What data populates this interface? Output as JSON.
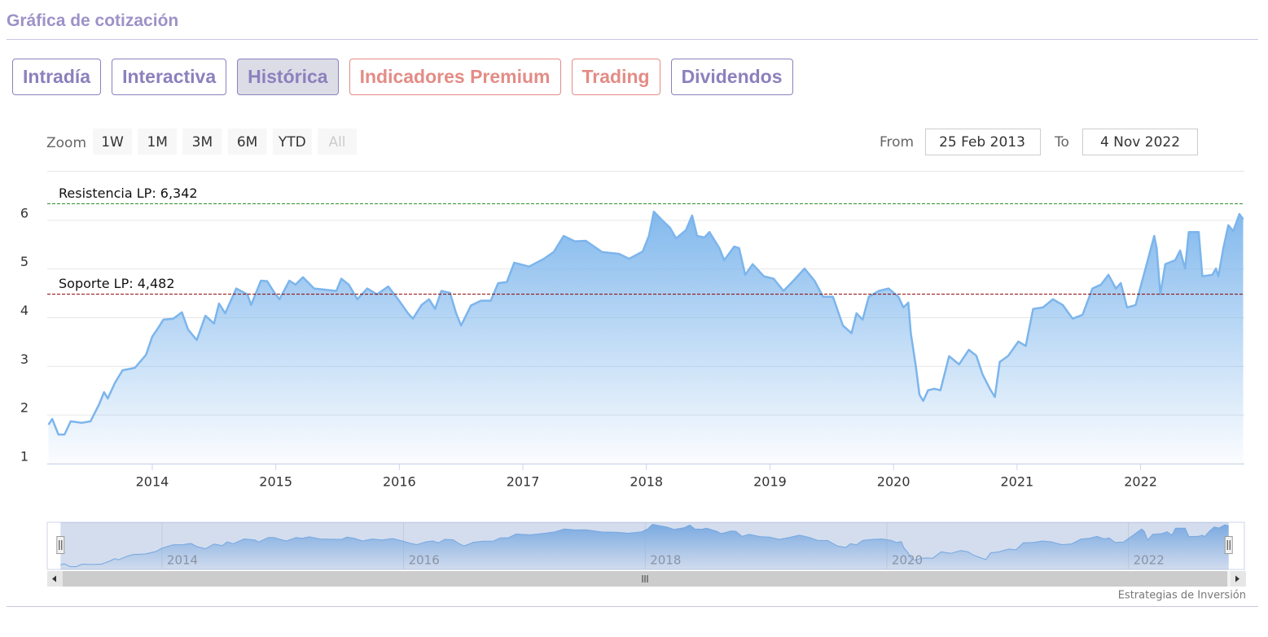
{
  "header": {
    "title": "Gráfica de cotización"
  },
  "tabs": [
    {
      "label": "Intradía",
      "color": "#8c80bd"
    },
    {
      "label": "Interactiva",
      "color": "#8c80bd"
    },
    {
      "label": "Histórica",
      "color": "#8c80bd",
      "active": true
    },
    {
      "label": "Indicadores Premium",
      "color": "#e38c86"
    },
    {
      "label": "Trading",
      "color": "#e38c86"
    },
    {
      "label": "Dividendos",
      "color": "#8c80bd"
    }
  ],
  "range_selector": {
    "zoom_label": "Zoom",
    "buttons": [
      {
        "label": "1W"
      },
      {
        "label": "1M"
      },
      {
        "label": "3M"
      },
      {
        "label": "6M"
      },
      {
        "label": "YTD"
      },
      {
        "label": "All",
        "disabled": true
      }
    ],
    "from_label": "From",
    "from": "25 Feb 2013",
    "to_label": "To",
    "to": "4 Nov 2022"
  },
  "chart_data": {
    "type": "area",
    "color": "#7cb5ec",
    "x": [
      2013.16,
      2013.19,
      2013.24,
      2013.29,
      2013.34,
      2013.43,
      2013.5,
      2013.57,
      2013.61,
      2013.64,
      2013.7,
      2013.76,
      2013.86,
      2013.95,
      2014.0,
      2014.04,
      2014.09,
      2014.17,
      2014.24,
      2014.29,
      2014.36,
      2014.43,
      2014.5,
      2014.54,
      2014.59,
      2014.68,
      2014.77,
      2014.8,
      2014.88,
      2014.93,
      2014.99,
      2015.03,
      2015.11,
      2015.16,
      2015.22,
      2015.31,
      2015.38,
      2015.49,
      2015.53,
      2015.59,
      2015.66,
      2015.74,
      2015.82,
      2015.91,
      2015.99,
      2016.07,
      2016.11,
      2016.18,
      2016.24,
      2016.29,
      2016.34,
      2016.41,
      2016.46,
      2016.5,
      2016.58,
      2016.66,
      2016.74,
      2016.8,
      2016.87,
      2016.93,
      2017.05,
      2017.17,
      2017.25,
      2017.33,
      2017.42,
      2017.51,
      2017.64,
      2017.78,
      2017.86,
      2017.97,
      2018.02,
      2018.06,
      2018.12,
      2018.19,
      2018.24,
      2018.32,
      2018.37,
      2018.41,
      2018.47,
      2018.51,
      2018.59,
      2018.63,
      2018.71,
      2018.75,
      2018.8,
      2018.86,
      2018.95,
      2019.03,
      2019.11,
      2019.19,
      2019.28,
      2019.36,
      2019.43,
      2019.51,
      2019.59,
      2019.66,
      2019.7,
      2019.75,
      2019.8,
      2019.88,
      2019.96,
      2020.04,
      2020.08,
      2020.12,
      2020.14,
      2020.18,
      2020.21,
      2020.24,
      2020.28,
      2020.33,
      2020.38,
      2020.45,
      2020.53,
      2020.61,
      2020.67,
      2020.72,
      2020.78,
      2020.82,
      2020.86,
      2020.93,
      2021.01,
      2021.07,
      2021.13,
      2021.21,
      2021.29,
      2021.37,
      2021.45,
      2021.53,
      2021.61,
      2021.68,
      2021.74,
      2021.8,
      2021.84,
      2021.89,
      2021.96,
      2022.04,
      2022.11,
      2022.13,
      2022.16,
      2022.2,
      2022.28,
      2022.32,
      2022.36,
      2022.39,
      2022.47,
      2022.5,
      2022.58,
      2022.61,
      2022.63,
      2022.67,
      2022.71,
      2022.75,
      2022.8,
      2022.83
    ],
    "values": [
      1.8,
      1.92,
      1.6,
      1.6,
      1.87,
      1.84,
      1.87,
      2.22,
      2.47,
      2.34,
      2.67,
      2.92,
      2.97,
      3.24,
      3.61,
      3.76,
      3.96,
      3.98,
      4.11,
      3.76,
      3.54,
      4.04,
      3.88,
      4.29,
      4.09,
      4.6,
      4.48,
      4.26,
      4.76,
      4.75,
      4.51,
      4.38,
      4.76,
      4.68,
      4.83,
      4.6,
      4.58,
      4.55,
      4.8,
      4.68,
      4.38,
      4.6,
      4.48,
      4.64,
      4.38,
      4.09,
      3.98,
      4.26,
      4.38,
      4.18,
      4.55,
      4.51,
      4.09,
      3.84,
      4.25,
      4.35,
      4.35,
      4.71,
      4.73,
      5.13,
      5.05,
      5.21,
      5.35,
      5.68,
      5.57,
      5.58,
      5.35,
      5.31,
      5.21,
      5.36,
      5.68,
      6.18,
      6.02,
      5.85,
      5.63,
      5.8,
      6.1,
      5.68,
      5.65,
      5.76,
      5.43,
      5.18,
      5.46,
      5.43,
      4.88,
      5.1,
      4.85,
      4.8,
      4.55,
      4.76,
      5.01,
      4.76,
      4.43,
      4.43,
      3.84,
      3.68,
      4.09,
      3.96,
      4.43,
      4.55,
      4.6,
      4.43,
      4.21,
      4.31,
      3.68,
      3.01,
      2.42,
      2.29,
      2.51,
      2.54,
      2.51,
      3.21,
      3.04,
      3.34,
      3.22,
      2.84,
      2.54,
      2.37,
      3.09,
      3.22,
      3.51,
      3.42,
      4.18,
      4.21,
      4.38,
      4.26,
      3.98,
      4.06,
      4.6,
      4.68,
      4.88,
      4.6,
      4.71,
      4.21,
      4.26,
      5.01,
      5.68,
      5.43,
      4.48,
      5.1,
      5.18,
      5.38,
      5.01,
      5.76,
      5.76,
      4.85,
      4.88,
      5.01,
      4.85,
      5.43,
      5.9,
      5.78,
      6.13,
      6.02
    ],
    "xlim": [
      2013.15,
      2022.84
    ],
    "xticks": [
      2014,
      2015,
      2016,
      2017,
      2018,
      2019,
      2020,
      2021,
      2022
    ],
    "ylim": [
      1,
      7
    ],
    "yticks": [
      1,
      2,
      3,
      4,
      5,
      6
    ],
    "grid": true,
    "plot_lines": [
      {
        "label": "Resistencia LP: 6,342",
        "value": 6.342,
        "color": "#1f8a1f"
      },
      {
        "label": "Soporte LP: 4,482",
        "value": 4.482,
        "color": "#8b0000"
      }
    ],
    "navigator": {
      "xlim": [
        2013.05,
        2022.96
      ],
      "ylim": [
        1.3,
        6.4
      ],
      "xticks": [
        2014,
        2016,
        2018,
        2020,
        2022
      ]
    }
  },
  "credits": "Estrategias de Inversión"
}
